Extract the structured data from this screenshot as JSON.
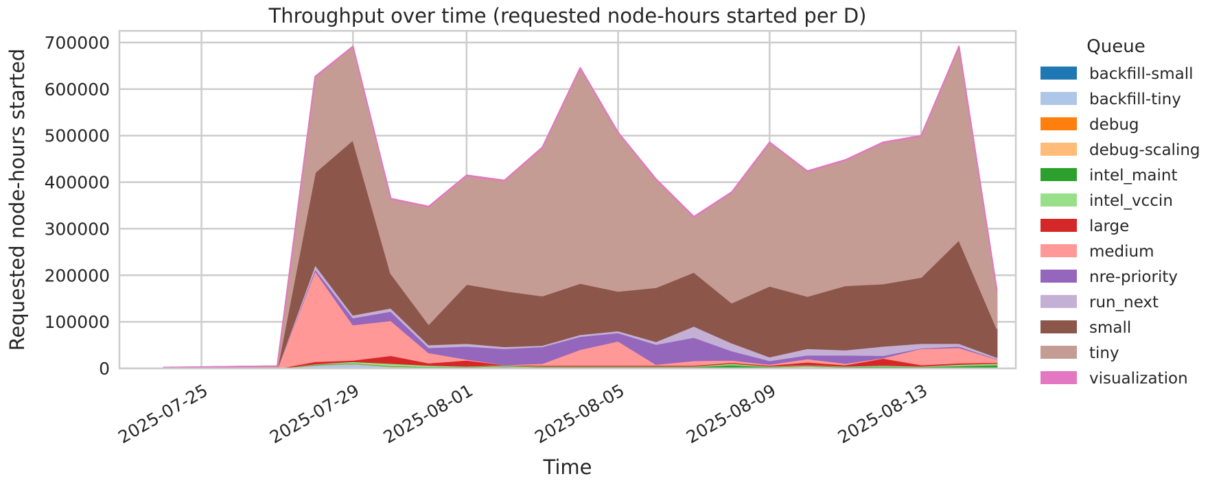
{
  "chart_data": {
    "type": "area",
    "stacked": true,
    "title": "Throughput over time (requested node-hours started per D)",
    "xlabel": "Time",
    "ylabel": "Requested node-hours started",
    "ylim": [
      0,
      725000
    ],
    "yticks": [
      0,
      100000,
      200000,
      300000,
      400000,
      500000,
      600000,
      700000
    ],
    "xlim": [
      "2025-07-22T20:00",
      "2025-08-15T12:00"
    ],
    "xticks": [
      "2025-07-25",
      "2025-07-29",
      "2025-08-01",
      "2025-08-05",
      "2025-08-09",
      "2025-08-13"
    ],
    "grid": true,
    "legend": {
      "title": "Queue",
      "placement": "outside-right"
    },
    "x": [
      "2025-07-24",
      "2025-07-25",
      "2025-07-26",
      "2025-07-27",
      "2025-07-28",
      "2025-07-29",
      "2025-07-30",
      "2025-07-31",
      "2025-08-01",
      "2025-08-02",
      "2025-08-03",
      "2025-08-04",
      "2025-08-05",
      "2025-08-06",
      "2025-08-07",
      "2025-08-08",
      "2025-08-09",
      "2025-08-10",
      "2025-08-11",
      "2025-08-12",
      "2025-08-13",
      "2025-08-14",
      "2025-08-15"
    ],
    "series": [
      {
        "name": "backfill-small",
        "color": "#1f77b4",
        "values": [
          0,
          0,
          0,
          0,
          1000,
          1000,
          1000,
          1000,
          1000,
          4000,
          1000,
          1000,
          1000,
          1000,
          1000,
          1000,
          1000,
          1000,
          1000,
          1000,
          1000,
          1000,
          1000
        ]
      },
      {
        "name": "backfill-tiny",
        "color": "#aec7e8",
        "values": [
          0,
          0,
          0,
          0,
          6000,
          9000,
          3000,
          1000,
          1000,
          1000,
          1000,
          1000,
          1000,
          1000,
          1000,
          1000,
          1000,
          4000,
          1000,
          1000,
          1000,
          1000,
          1000
        ]
      },
      {
        "name": "debug",
        "color": "#ff7f0e",
        "values": [
          0,
          0,
          0,
          0,
          500,
          500,
          500,
          500,
          500,
          500,
          500,
          500,
          500,
          500,
          500,
          500,
          500,
          500,
          500,
          500,
          500,
          500,
          500
        ]
      },
      {
        "name": "debug-scaling",
        "color": "#ffbb78",
        "values": [
          0,
          0,
          0,
          0,
          500,
          500,
          500,
          500,
          500,
          500,
          500,
          500,
          500,
          500,
          500,
          500,
          500,
          500,
          500,
          500,
          500,
          500,
          500
        ]
      },
      {
        "name": "intel_maint",
        "color": "#2ca02c",
        "values": [
          0,
          0,
          0,
          0,
          1000,
          1000,
          1000,
          1000,
          1000,
          1000,
          1000,
          1000,
          1000,
          1000,
          1000,
          5000,
          1000,
          1000,
          1000,
          2000,
          1000,
          3000,
          5000
        ]
      },
      {
        "name": "intel_vccin",
        "color": "#98df8a",
        "values": [
          0,
          0,
          0,
          0,
          1000,
          3000,
          5000,
          3000,
          1000,
          1000,
          1000,
          1000,
          1000,
          1000,
          1000,
          3000,
          1000,
          1000,
          1000,
          2000,
          1000,
          3000,
          3000
        ]
      },
      {
        "name": "large",
        "color": "#d62728",
        "values": [
          0,
          0,
          0,
          0,
          5000,
          3000,
          17000,
          5000,
          13000,
          0,
          2000,
          2000,
          2000,
          2000,
          2000,
          2000,
          2000,
          6000,
          3000,
          15000,
          3000,
          3000,
          2000
        ]
      },
      {
        "name": "medium",
        "color": "#ff9896",
        "values": [
          0,
          0,
          0,
          0,
          195000,
          76000,
          75000,
          22000,
          2000,
          0,
          4000,
          34000,
          52000,
          2000,
          10000,
          5000,
          2000,
          7000,
          3000,
          1000,
          35000,
          33000,
          7000
        ]
      },
      {
        "name": "nre-priority",
        "color": "#9467bd",
        "values": [
          0,
          0,
          0,
          0,
          4000,
          15000,
          20000,
          11000,
          28000,
          35000,
          36000,
          28000,
          18000,
          43000,
          50000,
          20000,
          8000,
          8000,
          18000,
          5000,
          1000,
          3000,
          1000
        ]
      },
      {
        "name": "run_next",
        "color": "#c5b0d5",
        "values": [
          0,
          0,
          0,
          0,
          9000,
          6000,
          7000,
          6000,
          6000,
          4000,
          3000,
          4000,
          4000,
          6000,
          24000,
          17000,
          8000,
          14000,
          11000,
          20000,
          10000,
          6000,
          3000
        ]
      },
      {
        "name": "small",
        "color": "#8c564b",
        "values": [
          0,
          0,
          0,
          0,
          198000,
          376000,
          74000,
          44000,
          127000,
          120000,
          106000,
          110000,
          85000,
          116000,
          116000,
          86000,
          152000,
          112000,
          138000,
          134000,
          142000,
          222000,
          62000
        ]
      },
      {
        "name": "tiny",
        "color": "#c49c94",
        "values": [
          2000,
          3000,
          4000,
          5000,
          205000,
          200000,
          160000,
          252000,
          233000,
          236000,
          318000,
          462000,
          340000,
          232000,
          118000,
          237000,
          308000,
          268000,
          269000,
          303000,
          303000,
          415000,
          82000
        ]
      },
      {
        "name": "visualization",
        "color": "#e377c2",
        "values": [
          0,
          0,
          0,
          0,
          1000,
          1000,
          1000,
          1000,
          1000,
          1000,
          1000,
          1000,
          1000,
          1000,
          1000,
          1000,
          1000,
          1000,
          1000,
          1000,
          1000,
          1000,
          1000
        ]
      }
    ]
  }
}
